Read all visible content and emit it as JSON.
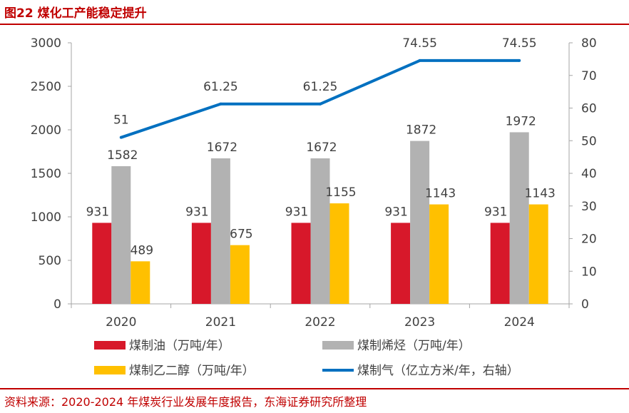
{
  "figure": {
    "title": "图22  煤化工产能稳定提升",
    "source": "资料来源：2020-2024 年煤炭行业发展年度报告，东海证券研究所整理"
  },
  "chart_data": {
    "type": "bar",
    "categories": [
      "2020",
      "2021",
      "2022",
      "2023",
      "2024"
    ],
    "series": [
      {
        "name": "煤制油（万吨/年）",
        "type": "bar",
        "axis": "left",
        "color": "#d7182a",
        "values": [
          931,
          931,
          931,
          931,
          931
        ]
      },
      {
        "name": "煤制烯烃（万吨/年）",
        "type": "bar",
        "axis": "left",
        "color": "#b2b2b2",
        "values": [
          1582,
          1672,
          1672,
          1872,
          1972
        ]
      },
      {
        "name": "煤制乙二醇（万吨/年）",
        "type": "bar",
        "axis": "left",
        "color": "#ffc000",
        "values": [
          489,
          675,
          1155,
          1143,
          1143
        ]
      },
      {
        "name": "煤制气（亿立方米/年，右轴）",
        "type": "line",
        "axis": "right",
        "color": "#0070c0",
        "values": [
          51,
          61.25,
          61.25,
          74.55,
          74.55
        ]
      }
    ],
    "y_left": {
      "min": 0,
      "max": 3000,
      "ticks": [
        0,
        500,
        1000,
        1500,
        2000,
        2500,
        3000
      ]
    },
    "y_right": {
      "min": 0,
      "max": 80,
      "ticks": [
        0,
        10,
        20,
        30,
        40,
        50,
        60,
        70,
        80
      ]
    },
    "legend_position": "bottom",
    "grid": false
  }
}
